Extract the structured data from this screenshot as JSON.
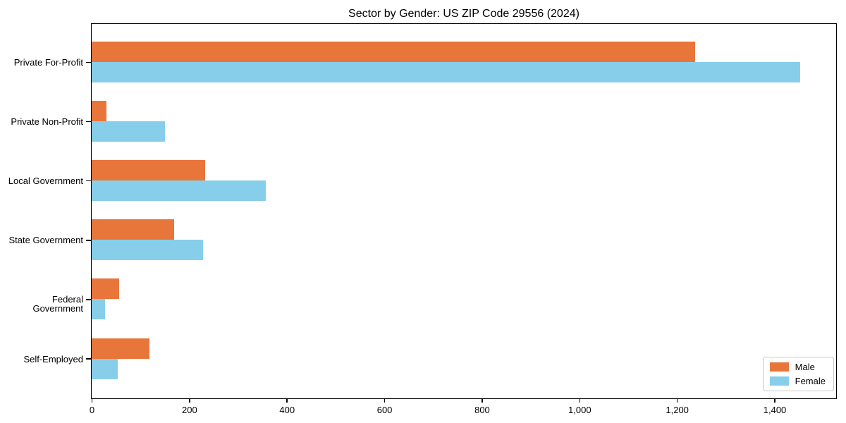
{
  "figure": {
    "background": "#ffffff",
    "text_color": "#000000",
    "spine_color": "#000000"
  },
  "chart_data": {
    "type": "bar",
    "orientation": "horizontal",
    "title": "Sector by Gender: US ZIP Code 29556 (2024)",
    "categories": [
      "Private For-Profit",
      "Private Non-Profit",
      "Local Government",
      "State Government",
      "Federal Government",
      "Self-Employed"
    ],
    "series": [
      {
        "name": "Male",
        "color": "#E8763B",
        "values": [
          1238,
          31,
          233,
          169,
          56,
          119
        ]
      },
      {
        "name": "Female",
        "color": "#87CEEB",
        "values": [
          1453,
          150,
          357,
          228,
          28,
          53
        ]
      }
    ],
    "xlabel": "",
    "ylabel": "",
    "xlim": [
      0,
      1525
    ],
    "xticks": [
      0,
      200,
      400,
      600,
      800,
      1000,
      1200,
      1400
    ],
    "xtick_labels": [
      "0",
      "200",
      "400",
      "600",
      "800",
      "1,000",
      "1,200",
      "1,400"
    ],
    "grid": false,
    "legend": {
      "position": "lower right",
      "entries": [
        "Male",
        "Female"
      ]
    }
  }
}
